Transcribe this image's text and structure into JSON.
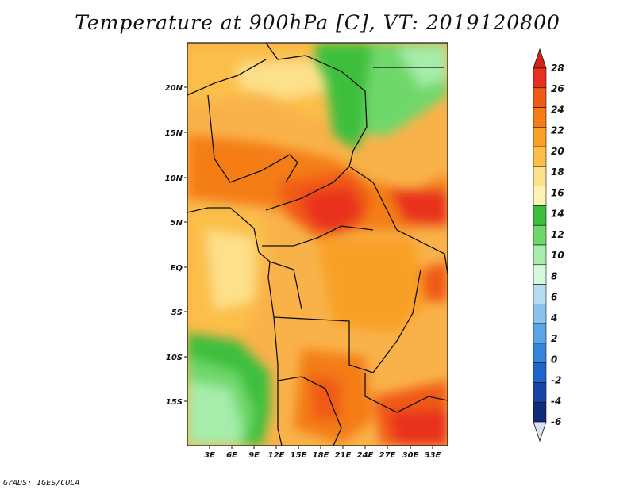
{
  "title": "Temperature at 900hPa [C], VT: 2019120800",
  "credit": "GrADS: IGES/COLA",
  "map": {
    "region": "Central & Southern Africa",
    "lat_labels": [
      "20N",
      "15N",
      "10N",
      "5N",
      "EQ",
      "5S",
      "10S",
      "15S"
    ],
    "lon_labels": [
      "3E",
      "6E",
      "9E",
      "12E",
      "15E",
      "18E",
      "21E",
      "24E",
      "27E",
      "30E",
      "33E"
    ]
  },
  "colorbar": {
    "labels": [
      "28",
      "26",
      "24",
      "22",
      "20",
      "18",
      "16",
      "14",
      "12",
      "10",
      "8",
      "6",
      "4",
      "2",
      "0",
      "-2",
      "-4",
      "-6"
    ],
    "colors": [
      "#e8301f",
      "#f05a16",
      "#f47d18",
      "#f8a027",
      "#fbbf4a",
      "#fde08a",
      "#fff2b8",
      "#3cbf3c",
      "#6fd86a",
      "#a6ecaa",
      "#d8f6da",
      "#b4dcf5",
      "#8cc2ee",
      "#5aa5e6",
      "#3486db",
      "#1f66cc",
      "#1845a8",
      "#102c78",
      "#0b1a55"
    ],
    "over_color": "#d4221a",
    "under_color": "#dde0f2"
  }
}
